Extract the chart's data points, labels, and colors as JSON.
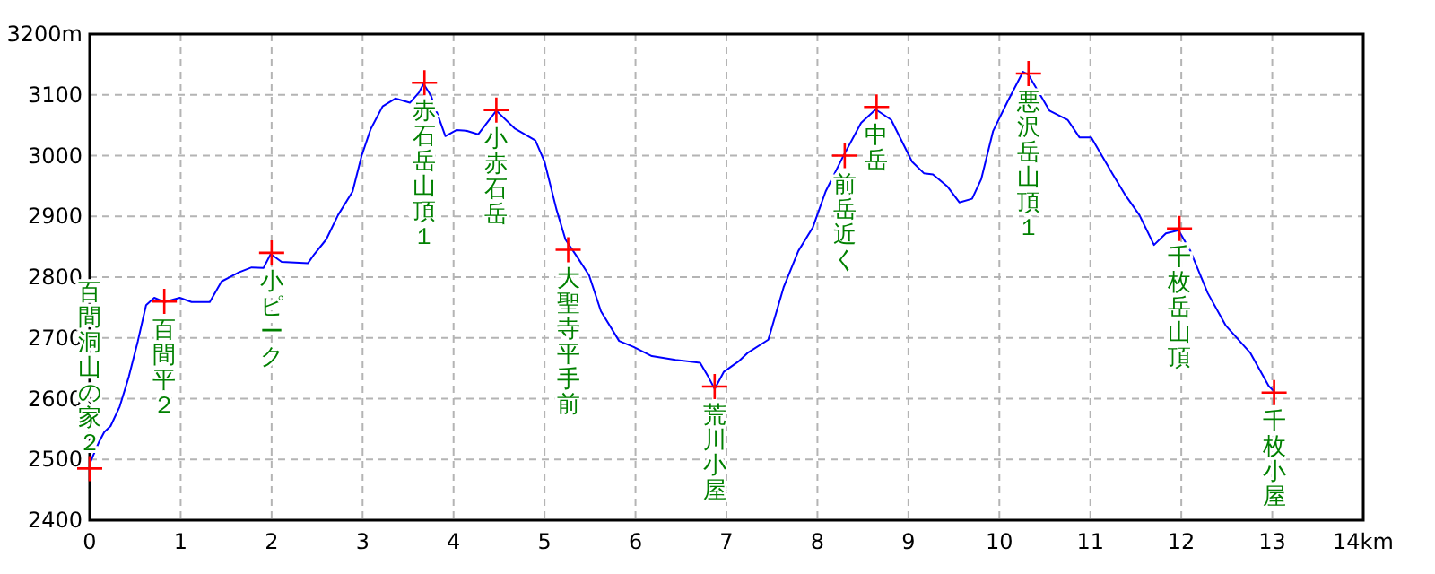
{
  "chart_data": {
    "type": "line",
    "xlim": [
      0,
      14
    ],
    "ylim": [
      2400,
      3200
    ],
    "xticks": [
      0,
      1,
      2,
      3,
      4,
      5,
      6,
      7,
      8,
      9,
      10,
      11,
      12,
      13,
      {
        "value": 14,
        "label": "14km"
      }
    ],
    "yticks": [
      2400,
      2500,
      2600,
      2700,
      2800,
      2900,
      3000,
      3100,
      {
        "value": 3200,
        "label": "3200m"
      }
    ],
    "grid": true,
    "series": [
      {
        "type": "line",
        "color": "#0000ff",
        "marker": "none",
        "x": [
          0,
          0.1,
          0.16,
          0.23,
          0.33,
          0.43,
          0.53,
          0.62,
          0.71,
          0.82,
          0.99,
          1.12,
          1.32,
          1.45,
          1.64,
          1.78,
          1.91,
          1.99,
          2.11,
          2.4,
          2.47,
          2.6,
          2.73,
          2.89,
          2.99,
          3.09,
          3.22,
          3.36,
          3.52,
          3.62,
          3.67,
          3.75,
          3.91,
          4.03,
          4.14,
          4.27,
          4.47,
          4.67,
          4.9,
          5.0,
          5.13,
          5.23,
          5.36,
          5.49,
          5.62,
          5.82,
          5.98,
          6.18,
          6.44,
          6.71,
          6.8,
          6.87,
          6.97,
          7.13,
          7.23,
          7.46,
          7.63,
          7.79,
          7.95,
          8.09,
          8.28,
          8.48,
          8.64,
          8.81,
          9.04,
          9.17,
          9.27,
          9.43,
          9.56,
          9.7,
          9.8,
          9.93,
          10.09,
          10.26,
          10.32,
          10.55,
          10.75,
          10.88,
          11.01,
          11.24,
          11.38,
          11.54,
          11.7,
          11.83,
          11.97,
          12.1,
          12.29,
          12.49,
          12.76,
          12.96,
          13.02
        ],
        "values": [
          2493,
          2528,
          2545,
          2555,
          2587,
          2636,
          2695,
          2754,
          2766,
          2759,
          2766,
          2759,
          2759,
          2793,
          2808,
          2816,
          2815,
          2838,
          2825,
          2823,
          2838,
          2862,
          2902,
          2941,
          3000,
          3044,
          3081,
          3094,
          3087,
          3104,
          3118,
          3099,
          3032,
          3042,
          3041,
          3035,
          3074,
          3045,
          3025,
          2990,
          2912,
          2862,
          2833,
          2803,
          2744,
          2695,
          2685,
          2670,
          2664,
          2659,
          2636,
          2616,
          2644,
          2661,
          2675,
          2697,
          2784,
          2843,
          2882,
          2941,
          2998,
          3054,
          3076,
          3059,
          2990,
          2971,
          2969,
          2949,
          2923,
          2929,
          2961,
          3040,
          3089,
          3138,
          3133,
          3074,
          3059,
          3030,
          3030,
          2971,
          2936,
          2902,
          2853,
          2872,
          2877,
          2843,
          2774,
          2720,
          2675,
          2621,
          2612
        ]
      },
      {
        "type": "scatter",
        "color": "#ff0000",
        "marker": "cross",
        "x": [
          0,
          0.82,
          2.0,
          3.68,
          4.47,
          5.26,
          6.87,
          8.3,
          8.65,
          10.32,
          11.98,
          13.02
        ],
        "values": [
          2485,
          2760,
          2840,
          3120,
          3075,
          2845,
          2620,
          3000,
          3080,
          3135,
          2880,
          2610
        ]
      }
    ],
    "annotations": [
      {
        "text": "百間洞山の家２",
        "x": 0,
        "y": 2485
      },
      {
        "text": "百間平２",
        "x": 0.82,
        "y": 2760
      },
      {
        "text": "小ピーク",
        "x": 2.0,
        "y": 2840
      },
      {
        "text": "赤石岳山頂１",
        "x": 3.68,
        "y": 3120
      },
      {
        "text": "小赤石岳",
        "x": 4.47,
        "y": 3075
      },
      {
        "text": "大聖寺平手前",
        "x": 5.26,
        "y": 2845
      },
      {
        "text": "荒川小屋",
        "x": 6.87,
        "y": 2620
      },
      {
        "text": "前岳近く",
        "x": 8.3,
        "y": 3000
      },
      {
        "text": "中岳",
        "x": 8.65,
        "y": 3080
      },
      {
        "text": "悪沢岳山頂１",
        "x": 10.32,
        "y": 3135
      },
      {
        "text": "千枚岳山頂",
        "x": 11.98,
        "y": 2880
      },
      {
        "text": "千枚小屋",
        "x": 13.02,
        "y": 2610
      }
    ]
  }
}
